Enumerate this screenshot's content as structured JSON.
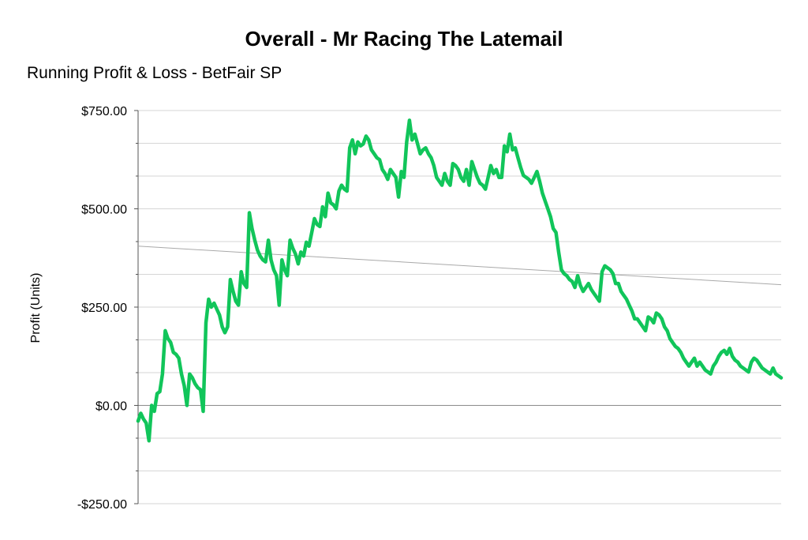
{
  "chart_data": {
    "type": "line",
    "title": "Overall - Mr Racing The Latemail",
    "subtitle": "Running Profit & Loss - BetFair SP",
    "ylabel": "Profit (Units)",
    "ylim": [
      -250,
      750
    ],
    "yticks": [
      {
        "value": 750,
        "label": "$750.00"
      },
      {
        "value": 500,
        "label": "$500.00"
      },
      {
        "value": 250,
        "label": "$250.00"
      },
      {
        "value": 0,
        "label": "$0.00"
      },
      {
        "value": -250,
        "label": "-$250.00"
      }
    ],
    "minor_gridlines": [
      666.67,
      583.33,
      416.67,
      333.33,
      166.67,
      83.33,
      -83.33,
      -166.67
    ],
    "grid": true,
    "colors": {
      "line": "#11c55a",
      "trend": "#a9a9a9",
      "grid": "#d6d6d6",
      "zero": "#8c8c8c",
      "ylabel": "#11c55a"
    },
    "trend": {
      "start": 405,
      "end": 307
    },
    "series": [
      {
        "values": [
          -40,
          -20,
          -35,
          -45,
          -90,
          0,
          -15,
          30,
          35,
          80,
          190,
          170,
          160,
          135,
          130,
          120,
          80,
          50,
          0,
          80,
          70,
          55,
          45,
          40,
          -15,
          210,
          270,
          250,
          260,
          245,
          230,
          200,
          185,
          200,
          320,
          290,
          265,
          255,
          340,
          310,
          300,
          490,
          450,
          420,
          395,
          380,
          370,
          365,
          420,
          370,
          345,
          330,
          255,
          370,
          345,
          330,
          420,
          400,
          385,
          360,
          390,
          380,
          415,
          405,
          440,
          475,
          460,
          455,
          505,
          480,
          540,
          515,
          510,
          500,
          545,
          560,
          550,
          545,
          655,
          675,
          640,
          670,
          660,
          665,
          685,
          675,
          650,
          640,
          630,
          625,
          600,
          590,
          575,
          600,
          590,
          580,
          530,
          595,
          580,
          670,
          725,
          675,
          690,
          665,
          640,
          650,
          655,
          640,
          630,
          610,
          580,
          570,
          560,
          590,
          570,
          560,
          615,
          610,
          600,
          580,
          570,
          600,
          560,
          620,
          600,
          580,
          565,
          560,
          550,
          580,
          610,
          590,
          600,
          580,
          580,
          660,
          645,
          690,
          650,
          655,
          630,
          605,
          585,
          580,
          575,
          565,
          580,
          595,
          570,
          540,
          520,
          500,
          480,
          450,
          440,
          390,
          345,
          335,
          330,
          320,
          315,
          300,
          330,
          305,
          290,
          300,
          310,
          295,
          285,
          275,
          265,
          340,
          355,
          350,
          345,
          335,
          310,
          310,
          290,
          280,
          270,
          255,
          240,
          220,
          220,
          210,
          200,
          190,
          225,
          220,
          210,
          235,
          230,
          220,
          200,
          190,
          170,
          160,
          150,
          145,
          135,
          120,
          110,
          100,
          110,
          120,
          100,
          110,
          100,
          90,
          85,
          80,
          100,
          110,
          125,
          135,
          140,
          130,
          145,
          125,
          115,
          110,
          100,
          95,
          90,
          85,
          110,
          120,
          115,
          105,
          95,
          90,
          85,
          80,
          95,
          80,
          75,
          70
        ]
      }
    ]
  }
}
